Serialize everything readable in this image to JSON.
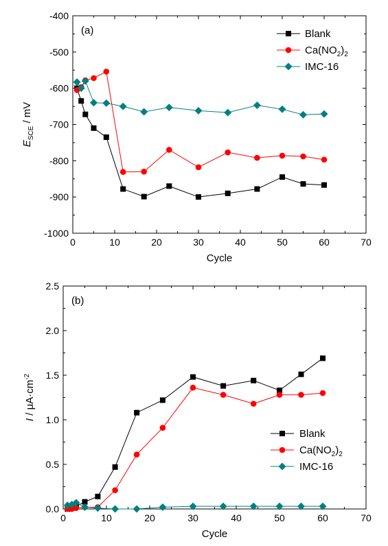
{
  "chart_data": [
    {
      "type": "line",
      "panel_label": "(a)",
      "xlabel": "Cycle",
      "ylabel": {
        "main": "E",
        "sub": "SCE",
        "unit": " / mV"
      },
      "xlim": [
        0,
        70
      ],
      "ylim": [
        -1000,
        -400
      ],
      "xticks": [
        "0",
        "10",
        "20",
        "30",
        "40",
        "50",
        "60",
        "70"
      ],
      "yticks": [
        "-1000",
        "-900",
        "-800",
        "-700",
        "-600",
        "-500",
        "-400"
      ],
      "legend_position": "top-right",
      "series": [
        {
          "name": "Blank",
          "color": "#000000",
          "marker": "square",
          "x": [
            1,
            2,
            3,
            5,
            8,
            12,
            17,
            23,
            30,
            37,
            44,
            50,
            55,
            60
          ],
          "y": [
            -600,
            -635,
            -672,
            -710,
            -735,
            -878,
            -899,
            -870,
            -900,
            -890,
            -878,
            -845,
            -864,
            -867
          ]
        },
        {
          "name": {
            "main": "Ca(NO",
            "sub1": "2",
            "mid": ")",
            "sub2": "2"
          },
          "color": "#ff0000",
          "marker": "circle",
          "x": [
            1,
            2,
            3,
            5,
            8,
            12,
            17,
            23,
            30,
            37,
            44,
            50,
            55,
            60
          ],
          "y": [
            -605,
            -597,
            -578,
            -572,
            -554,
            -831,
            -830,
            -770,
            -818,
            -777,
            -792,
            -786,
            -788,
            -797
          ]
        },
        {
          "name": "IMC-16",
          "color": "#008080",
          "marker": "diamond",
          "x": [
            1,
            2,
            3,
            5,
            8,
            12,
            17,
            23,
            30,
            37,
            44,
            50,
            55,
            60
          ],
          "y": [
            -583,
            -600,
            -580,
            -640,
            -641,
            -650,
            -665,
            -653,
            -662,
            -667,
            -647,
            -658,
            -673,
            -671
          ]
        }
      ]
    },
    {
      "type": "line",
      "panel_label": "(b)",
      "xlabel": "Cycle",
      "ylabel": {
        "main": "I",
        "unit": " / μA·cm",
        "sup": "-2"
      },
      "xlim": [
        0,
        70
      ],
      "ylim": [
        0,
        2.5
      ],
      "xticks": [
        "0",
        "10",
        "20",
        "30",
        "40",
        "50",
        "60",
        "70"
      ],
      "yticks": [
        "0.0",
        "0.5",
        "1.0",
        "1.5",
        "2.0",
        "2.5"
      ],
      "legend_position": "bottom-right",
      "series": [
        {
          "name": "Blank",
          "color": "#000000",
          "marker": "square",
          "x": [
            1,
            2,
            3,
            5,
            8,
            12,
            17,
            23,
            30,
            37,
            44,
            50,
            55,
            60
          ],
          "y": [
            0.0,
            0.01,
            0.03,
            0.08,
            0.14,
            0.47,
            1.08,
            1.22,
            1.48,
            1.38,
            1.44,
            1.33,
            1.51,
            1.69
          ]
        },
        {
          "name": {
            "main": "Ca(NO",
            "sub1": "2",
            "mid": ")",
            "sub2": "2"
          },
          "color": "#ff0000",
          "marker": "circle",
          "x": [
            1,
            2,
            3,
            5,
            8,
            12,
            17,
            23,
            30,
            37,
            44,
            50,
            55,
            60
          ],
          "y": [
            0.0,
            0.0,
            0.01,
            0.02,
            0.02,
            0.21,
            0.61,
            0.91,
            1.36,
            1.28,
            1.18,
            1.28,
            1.28,
            1.3
          ]
        },
        {
          "name": "IMC-16",
          "color": "#008080",
          "marker": "diamond",
          "x": [
            1,
            2,
            3,
            5,
            8,
            12,
            17,
            23,
            30,
            37,
            44,
            50,
            55,
            60
          ],
          "y": [
            0.04,
            0.05,
            0.07,
            0.02,
            0.01,
            0.0,
            0.0,
            0.02,
            0.03,
            0.03,
            0.03,
            0.03,
            0.03,
            0.03
          ]
        }
      ]
    }
  ]
}
